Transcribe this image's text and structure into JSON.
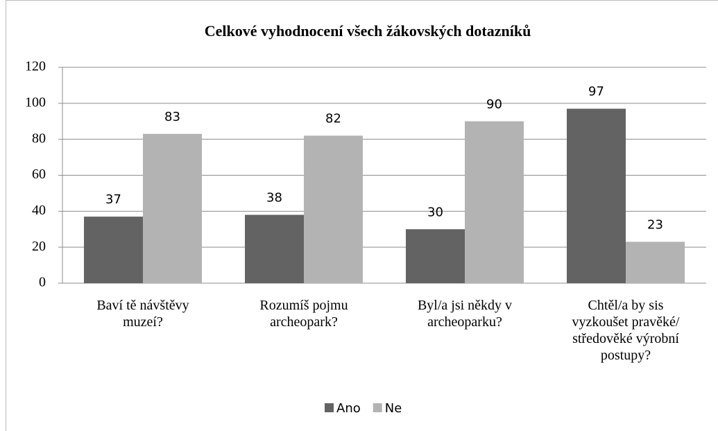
{
  "chart_data": {
    "type": "bar",
    "title": "Celkové vyhodnocení všech žákovských dotazníků",
    "categories": [
      "Baví tě návštěvy muzeí?",
      "Rozumíš pojmu archeopark?",
      "Byl/a jsi někdy v archeoparku?",
      "Chtěl/a by sis vyzkoušet pravěké/ středověké výrobní postupy?"
    ],
    "series": [
      {
        "name": "Ano",
        "color": "#636363",
        "values": [
          37,
          38,
          30,
          97
        ]
      },
      {
        "name": "Ne",
        "color": "#b3b3b3",
        "values": [
          83,
          82,
          90,
          23
        ]
      }
    ],
    "ylim": [
      0,
      120
    ],
    "yticks": [
      0,
      20,
      40,
      60,
      80,
      100,
      120
    ],
    "grid": true,
    "legend": "bottom"
  }
}
